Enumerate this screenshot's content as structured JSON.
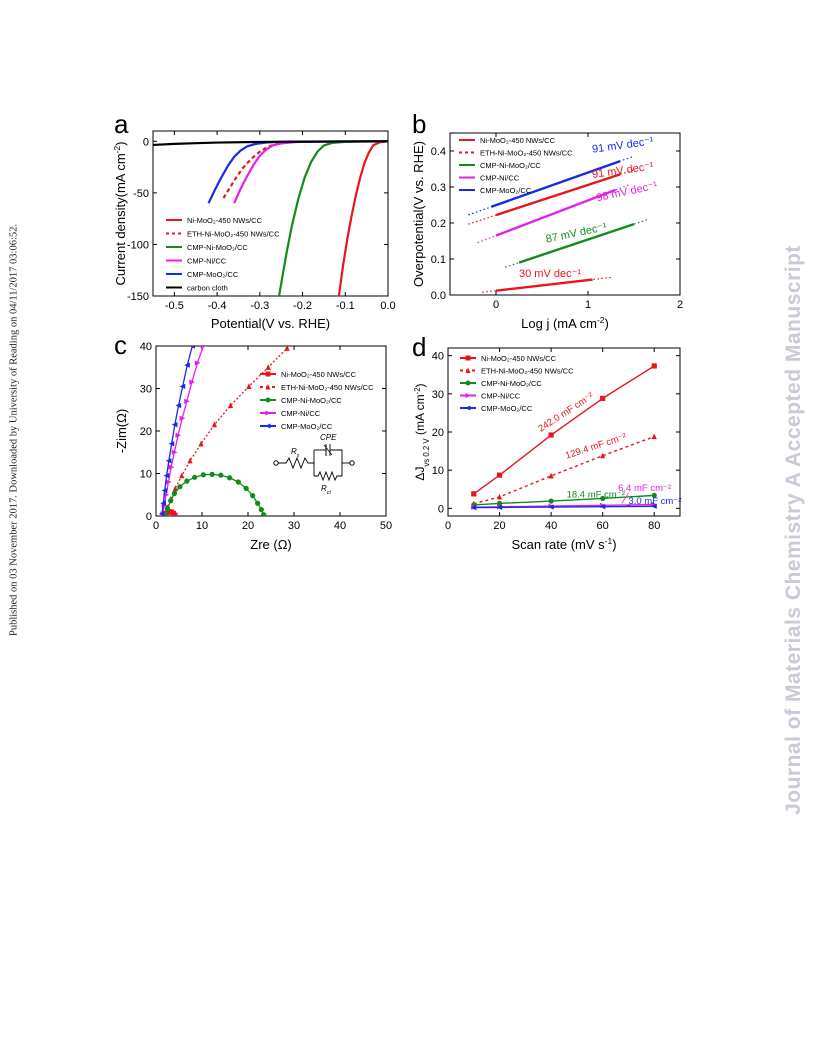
{
  "side_text": "Published on 03 November 2017. Downloaded by University of Reading on 04/11/2017 03:06:52.",
  "watermark": "Journal of Materials Chemistry A Accepted Manuscript",
  "colors": {
    "red": "#e8141e",
    "green": "#138a1c",
    "magenta": "#e020e8",
    "blue": "#1a2ae0",
    "black": "#000000"
  },
  "panels": {
    "a": {
      "letter": "a",
      "xlabel": "Potential(V vs. RHE)",
      "ylabel": "Current density(mA cm",
      "ylabel_sup": "-2",
      "ylabel_end": ")",
      "xticks": [
        "-0.5",
        "-0.4",
        "-0.3",
        "-0.2",
        "-0.1",
        "0.0"
      ],
      "yticks": [
        "0",
        "-50",
        "-100",
        "-150"
      ],
      "legend": [
        "Ni-MoO₂-450 NWs/CC",
        "ETH-Ni-MoO₂-450 NWs/CC",
        "CMP-Ni-MoO₂/CC",
        "CMP-Ni/CC",
        "CMP-MoO₂/CC",
        "carbon cloth"
      ]
    },
    "b": {
      "letter": "b",
      "xlabel": "Log j (mA cm",
      "xlabel_sup": "-2",
      "xlabel_end": ")",
      "ylabel": "Overpotential(V vs. RHE)",
      "xticks": [
        "0",
        "1",
        "2"
      ],
      "yticks": [
        "0.0",
        "0.1",
        "0.2",
        "0.3",
        "0.4"
      ],
      "legend": [
        "Ni-MoO₂-450 NWs/CC",
        "ETH-Ni-MoO₂-450 NWs/CC",
        "CMP-Ni-MoO₂/CC",
        "CMP-Ni/CC",
        "CMP-MoO₂/CC"
      ],
      "annotations": [
        "91 mV dec⁻¹",
        "91 mV dec⁻¹",
        "98 mV dec⁻¹",
        "87 mV dec⁻¹",
        "30 mV dec⁻¹"
      ]
    },
    "c": {
      "letter": "c",
      "xlabel": "Zre (Ω)",
      "ylabel": "-Zim(Ω)",
      "xticks": [
        "0",
        "10",
        "20",
        "30",
        "40",
        "50"
      ],
      "yticks": [
        "0",
        "10",
        "20",
        "30",
        "40"
      ],
      "legend": [
        "Ni-MoO₂-450 NWs/CC",
        "ETH-Ni-MoO₂-450 NWs/CC",
        "CMP-Ni-MoO₂/CC",
        "CMP-Ni/CC",
        "CMP-MoO₂/CC"
      ],
      "circuit": {
        "rs": "R",
        "rs_sub": "s",
        "cpe": "CPE",
        "rct": "R",
        "rct_sub": "ct"
      }
    },
    "d": {
      "letter": "d",
      "xlabel": "Scan rate (mV s",
      "xlabel_sup": "-1",
      "xlabel_end": ")",
      "ylabel": "ΔJ",
      "ylabel_sub": "vs 0.2 V",
      "ylabel_end": " (mA cm",
      "ylabel_sup": "-2",
      "ylabel_close": ")",
      "xticks": [
        "0",
        "20",
        "40",
        "60",
        "80"
      ],
      "yticks": [
        "0",
        "10",
        "20",
        "30",
        "40"
      ],
      "legend": [
        "Ni-MoO₂-450 NWs/CC",
        "ETH-Ni-MoO₂-450 NWs/CC",
        "CMP-Ni-MoO₂/CC",
        "CMP-Ni/CC",
        "CMP-MoO₂/CC"
      ],
      "annotations": [
        "242.0 mF cm⁻²",
        "129.4 mF cm⁻²",
        "18.4 mF cm⁻²",
        "6.4 mF cm⁻²",
        "3.0 mF cm⁻²"
      ]
    }
  },
  "chart_data": [
    {
      "type": "line",
      "panel": "a",
      "xlabel": "Potential(V vs. RHE)",
      "ylabel": "Current density(mA cm-2)",
      "xlim": [
        -0.55,
        0.0
      ],
      "ylim": [
        -150,
        10
      ],
      "series": [
        {
          "name": "Ni-MoO2-450 NWs/CC",
          "color": "#e8141e",
          "style": "solid",
          "x": [
            -0.115,
            -0.105,
            -0.095,
            -0.085,
            -0.075,
            -0.065,
            -0.055,
            -0.045,
            -0.035,
            -0.02,
            0.0
          ],
          "y": [
            -150,
            -120,
            -94,
            -72,
            -52,
            -35,
            -21,
            -11,
            -4,
            -1,
            0
          ]
        },
        {
          "name": "ETH-Ni-MoO2-450 NWs/CC",
          "color": "#e8141e",
          "style": "dash",
          "x": [
            -0.385,
            -0.37,
            -0.355,
            -0.34,
            -0.32,
            -0.3,
            -0.28,
            -0.26,
            -0.23,
            -0.2,
            0.0
          ],
          "y": [
            -55,
            -45,
            -35,
            -26,
            -17,
            -10,
            -5,
            -2.5,
            -1,
            -0.4,
            0
          ]
        },
        {
          "name": "CMP-Ni-MoO2/CC",
          "color": "#138a1c",
          "style": "solid",
          "x": [
            -0.255,
            -0.245,
            -0.235,
            -0.225,
            -0.21,
            -0.195,
            -0.18,
            -0.165,
            -0.15,
            -0.13,
            -0.1,
            0.0
          ],
          "y": [
            -150,
            -126,
            -103,
            -82,
            -56,
            -35,
            -20,
            -10,
            -4,
            -1.5,
            -0.5,
            0
          ]
        },
        {
          "name": "CMP-Ni/CC",
          "color": "#e020e8",
          "style": "solid",
          "x": [
            -0.36,
            -0.345,
            -0.33,
            -0.315,
            -0.3,
            -0.285,
            -0.27,
            -0.25,
            -0.22,
            -0.2,
            0.0
          ],
          "y": [
            -60,
            -46,
            -34,
            -23,
            -14,
            -8,
            -4,
            -2,
            -0.8,
            -0.3,
            0
          ]
        },
        {
          "name": "CMP-MoO2/CC",
          "color": "#1a2ae0",
          "style": "solid",
          "x": [
            -0.42,
            -0.405,
            -0.39,
            -0.375,
            -0.36,
            -0.345,
            -0.33,
            -0.31,
            -0.28,
            -0.25,
            0.0
          ],
          "y": [
            -60,
            -47,
            -35,
            -24,
            -15,
            -9,
            -5,
            -2.5,
            -1,
            -0.4,
            0
          ]
        },
        {
          "name": "carbon cloth",
          "color": "#000000",
          "style": "solid",
          "x": [
            -0.55,
            -0.5,
            -0.45,
            -0.4,
            -0.3,
            -0.2,
            -0.1,
            0.0
          ],
          "y": [
            -3.5,
            -2.5,
            -1.8,
            -1.2,
            -0.6,
            -0.3,
            -0.1,
            0
          ]
        }
      ]
    },
    {
      "type": "line",
      "panel": "b",
      "xlabel": "Log j (mA cm-2)",
      "ylabel": "Overpotential(V vs. RHE)",
      "xlim": [
        -0.5,
        2
      ],
      "ylim": [
        0,
        0.45
      ],
      "series": [
        {
          "name": "Ni-MoO2-450 NWs/CC",
          "color": "#e8141e",
          "x": [
            0,
            1.05
          ],
          "y": [
            0.012,
            0.043
          ],
          "extension_x": [
            -0.15,
            1.25
          ],
          "slope": "30 mV dec-1"
        },
        {
          "name": "ETH-Ni-MoO2-450 NWs/CC",
          "color": "#e8141e",
          "x": [
            0,
            1.35
          ],
          "y": [
            0.222,
            0.335
          ],
          "extension_x": [
            -0.3,
            1.5
          ],
          "slope": "91 mV dec-1"
        },
        {
          "name": "CMP-Ni-MoO2/CC",
          "color": "#138a1c",
          "x": [
            0.25,
            1.5
          ],
          "y": [
            0.09,
            0.197
          ],
          "extension_x": [
            0.1,
            1.65
          ],
          "slope": "87 mV dec-1"
        },
        {
          "name": "CMP-Ni/CC",
          "color": "#e020e8",
          "x": [
            0,
            1.3
          ],
          "y": [
            0.165,
            0.292
          ],
          "extension_x": [
            -0.2,
            1.45
          ],
          "slope": "98 mV dec-1"
        },
        {
          "name": "CMP-MoO2/CC",
          "color": "#1a2ae0",
          "x": [
            -0.05,
            1.35
          ],
          "y": [
            0.245,
            0.372
          ],
          "extension_x": [
            -0.3,
            1.5
          ],
          "slope": "91 mV dec-1"
        }
      ]
    },
    {
      "type": "scatter",
      "panel": "c",
      "xlabel": "Zre (Ω)",
      "ylabel": "-Zim(Ω)",
      "xlim": [
        0,
        50
      ],
      "ylim": [
        0,
        40
      ],
      "series": [
        {
          "name": "Ni-MoO2-450 NWs/CC",
          "color": "#e8141e",
          "marker": "square",
          "x": [
            1.8,
            2.2,
            2.6,
            3.0,
            3.4,
            3.8,
            4.1
          ],
          "y": [
            0.2,
            0.6,
            0.9,
            1.0,
            0.9,
            0.6,
            0.2
          ]
        },
        {
          "name": "ETH-Ni-MoO2-450 NWs/CC",
          "color": "#e8141e",
          "marker": "triangle",
          "x": [
            2.0,
            2.5,
            3.2,
            4.2,
            5.6,
            7.4,
            9.8,
            12.7,
            16.2,
            20.2,
            24.4,
            28.5
          ],
          "y": [
            0.5,
            2,
            4,
            6.5,
            9.5,
            13,
            17,
            21.5,
            26,
            30.5,
            35,
            39.5
          ]
        },
        {
          "name": "CMP-Ni-MoO2/CC",
          "color": "#138a1c",
          "marker": "circle",
          "x": [
            2.0,
            2.5,
            3.2,
            4.0,
            5.2,
            6.7,
            8.4,
            10.3,
            12.2,
            14.1,
            16.0,
            17.9,
            19.6,
            21.0,
            22.1,
            22.9,
            23.4
          ],
          "y": [
            0.3,
            1.8,
            3.6,
            5.3,
            6.9,
            8.2,
            9.1,
            9.7,
            9.8,
            9.6,
            9.0,
            8.0,
            6.5,
            4.8,
            3.0,
            1.5,
            0.3
          ]
        },
        {
          "name": "CMP-Ni/CC",
          "color": "#e020e8",
          "marker": "triangle-right",
          "x": [
            1.5,
            1.8,
            2.2,
            2.7,
            3.3,
            4.0,
            4.8,
            5.7,
            6.7,
            7.8,
            9.0,
            10.3
          ],
          "y": [
            0.5,
            2.5,
            5,
            8,
            11.5,
            15,
            19,
            23,
            27,
            31.5,
            36,
            40
          ]
        },
        {
          "name": "CMP-MoO2/CC",
          "color": "#1a2ae0",
          "marker": "triangle-left",
          "x": [
            1.3,
            1.6,
            1.9,
            2.3,
            2.8,
            3.4,
            4.1,
            4.9,
            5.8,
            6.8,
            7.9
          ],
          "y": [
            0.5,
            3,
            6,
            9.5,
            13,
            17,
            21.5,
            26,
            30.5,
            35.5,
            40
          ]
        }
      ]
    },
    {
      "type": "line",
      "panel": "d",
      "xlabel": "Scan rate (mV s-1)",
      "ylabel": "ΔJ vs 0.2 V (mA cm-2)",
      "xlim": [
        0,
        90
      ],
      "ylim": [
        -2,
        42
      ],
      "x": [
        10,
        20,
        40,
        60,
        80
      ],
      "series": [
        {
          "name": "Ni-MoO2-450 NWs/CC",
          "color": "#e8141e",
          "marker": "square",
          "style": "solid",
          "values": [
            3.8,
            8.7,
            19.2,
            28.8,
            37.3
          ],
          "capacitance": "242.0 mF cm-2"
        },
        {
          "name": "ETH-Ni-MoO2-450 NWs/CC",
          "color": "#e8141e",
          "marker": "triangle",
          "style": "dash",
          "values": [
            1.2,
            3.0,
            8.5,
            13.8,
            18.8
          ],
          "capacitance": "129.4 mF cm-2"
        },
        {
          "name": "CMP-Ni-MoO2/CC",
          "color": "#138a1c",
          "marker": "circle",
          "style": "solid",
          "values": [
            0.9,
            1.3,
            1.9,
            2.6,
            3.4
          ],
          "capacitance": "18.4 mF cm-2"
        },
        {
          "name": "CMP-Ni/CC",
          "color": "#e020e8",
          "marker": "triangle-right",
          "style": "solid",
          "values": [
            0.3,
            0.4,
            0.6,
            0.8,
            1.0
          ],
          "capacitance": "6.4 mF cm-2"
        },
        {
          "name": "CMP-MoO2/CC",
          "color": "#1a2ae0",
          "marker": "triangle-left",
          "style": "solid",
          "values": [
            0.2,
            0.25,
            0.35,
            0.45,
            0.55
          ],
          "capacitance": "3.0 mF cm-2"
        }
      ]
    }
  ]
}
